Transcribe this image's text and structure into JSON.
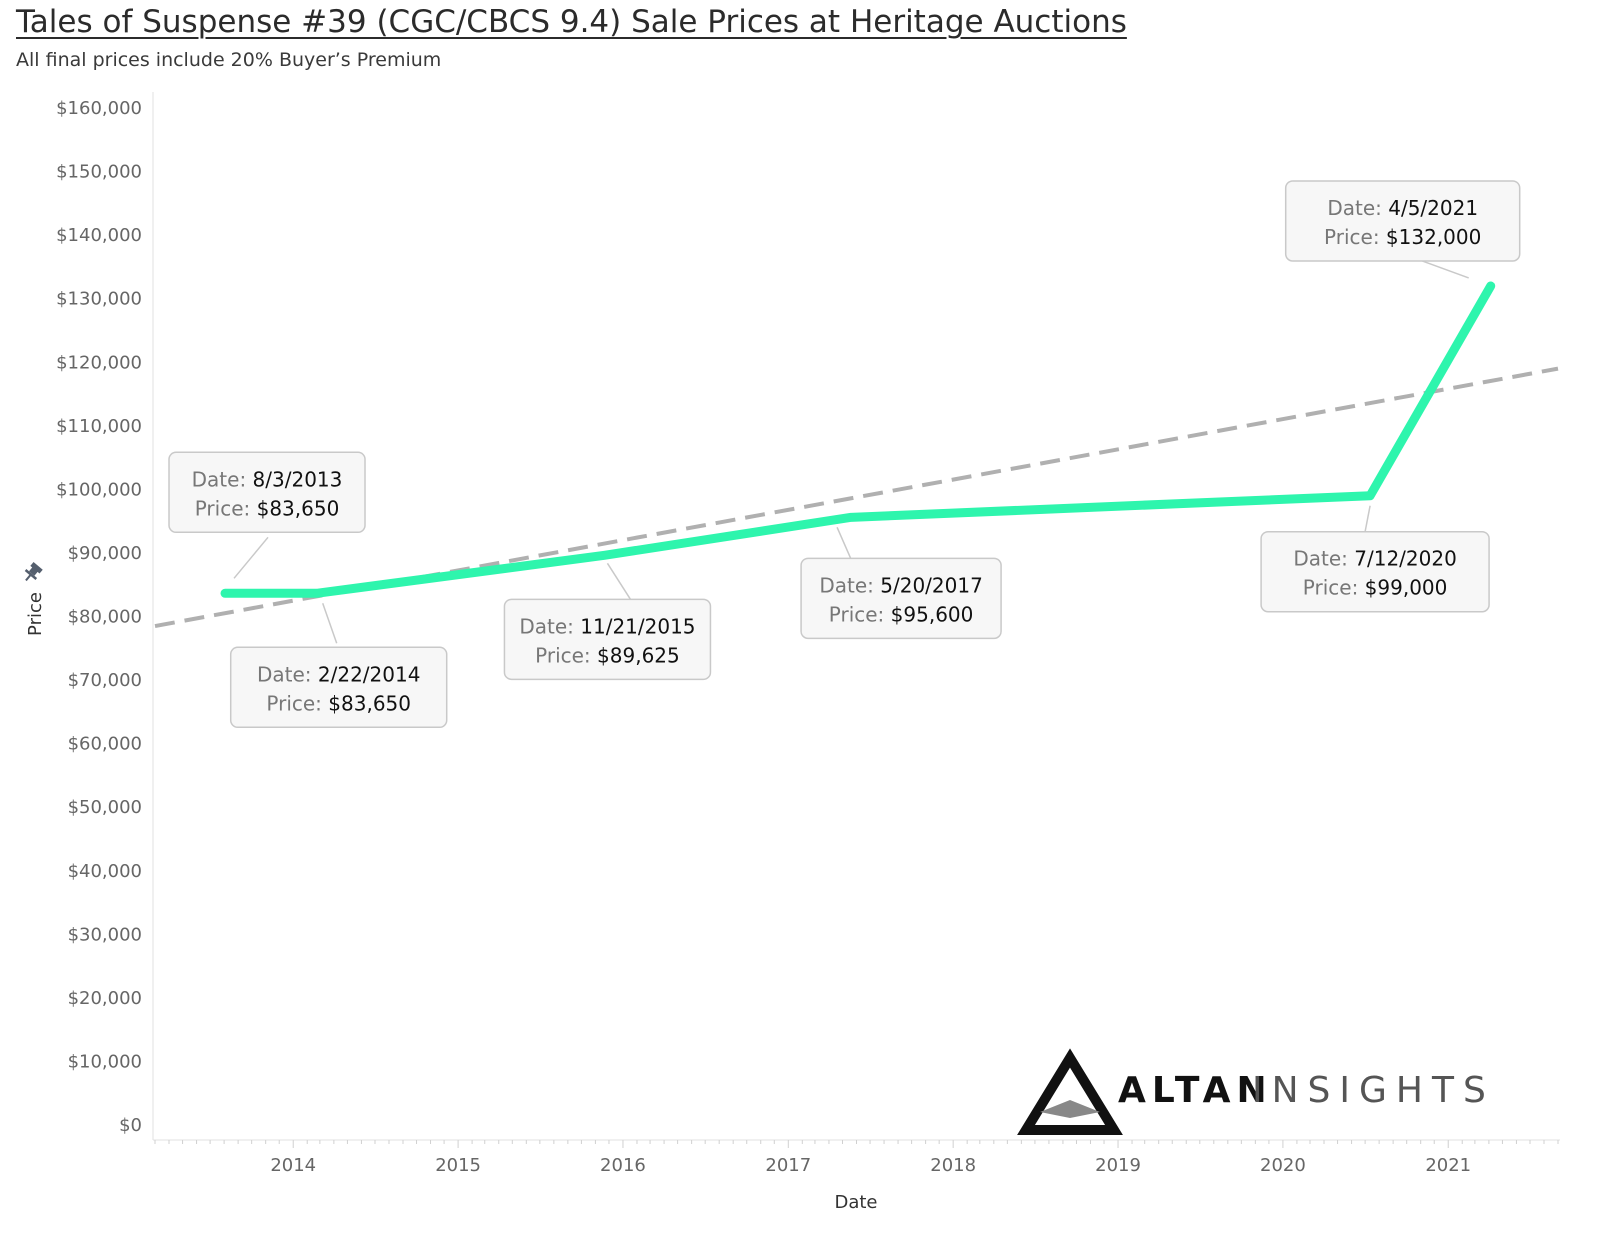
{
  "header": {
    "title": "Tales of Suspense #39 (CGC/CBCS 9.4) Sale Prices at Heritage Auctions",
    "subtitle": "All final prices include 20% Buyer’s Premium"
  },
  "chart_data": {
    "type": "line",
    "xlabel": "Date",
    "ylabel": "Price",
    "x_ticks": [
      "2014",
      "2015",
      "2016",
      "2017",
      "2018",
      "2019",
      "2020",
      "2021"
    ],
    "y_ticks": [
      "$0",
      "$10,000",
      "$20,000",
      "$30,000",
      "$40,000",
      "$50,000",
      "$60,000",
      "$70,000",
      "$80,000",
      "$90,000",
      "$100,000",
      "$110,000",
      "$120,000",
      "$130,000",
      "$140,000",
      "$150,000",
      "$160,000"
    ],
    "xlim": [
      "2013-03-01",
      "2021-09-01"
    ],
    "ylim": [
      0,
      160000
    ],
    "grid": false,
    "series": [
      {
        "color": "#2ef5ad",
        "points": [
          {
            "date": "2013-08-03",
            "label": "8/3/2013",
            "price": 83650,
            "price_label": "$83,650"
          },
          {
            "date": "2014-02-22",
            "label": "2/22/2014",
            "price": 83650,
            "price_label": "$83,650"
          },
          {
            "date": "2015-11-21",
            "label": "11/21/2015",
            "price": 89625,
            "price_label": "$89,625"
          },
          {
            "date": "2017-05-20",
            "label": "5/20/2017",
            "price": 95600,
            "price_label": "$95,600"
          },
          {
            "date": "2020-07-12",
            "label": "7/12/2020",
            "price": 99000,
            "price_label": "$99,000"
          },
          {
            "date": "2021-04-05",
            "label": "4/5/2021",
            "price": 132000,
            "price_label": "$132,000"
          }
        ]
      }
    ],
    "trend_line": {
      "style": "dashed",
      "color": "#b0b0b0",
      "start": {
        "date": "2013-03-01",
        "price": 78500
      },
      "end": {
        "date": "2021-09-01",
        "price": 119000
      }
    },
    "tooltip": {
      "date_prefix": "Date:",
      "price_prefix": "Price:"
    },
    "annotations": [
      {
        "point": 0,
        "position": "above-left"
      },
      {
        "point": 1,
        "position": "below-right"
      },
      {
        "point": 2,
        "position": "below"
      },
      {
        "point": 3,
        "position": "below"
      },
      {
        "point": 4,
        "position": "below"
      },
      {
        "point": 5,
        "position": "above"
      }
    ]
  },
  "logo": {
    "word1": "ALTAN",
    "word2": "INSIGHTS",
    "icon": "mountain-triangle-icon"
  },
  "icons": {
    "axis_pin": "pin-icon"
  }
}
